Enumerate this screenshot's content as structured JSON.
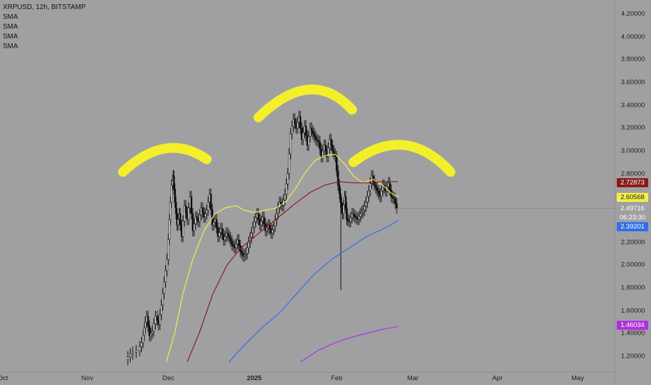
{
  "legend": {
    "symbol": "XRPUSD, 12h, BITSTAMP",
    "indicators": [
      "SMA",
      "SMA",
      "SMA",
      "SMA"
    ]
  },
  "price_axis": {
    "ticks": [
      "4.20000",
      "4.00000",
      "3.80000",
      "3.60000",
      "3.40000",
      "3.20000",
      "3.00000",
      "2.80000",
      "2.20000",
      "2.00000",
      "1.80000",
      "1.60000",
      "1.40000",
      "1.20000"
    ]
  },
  "time_axis": {
    "ticks": [
      {
        "label": "Oct",
        "bold": false
      },
      {
        "label": "Nov",
        "bold": false
      },
      {
        "label": "Dec",
        "bold": false
      },
      {
        "label": "2025",
        "bold": true
      },
      {
        "label": "Feb",
        "bold": false
      },
      {
        "label": "Mar",
        "bold": false
      },
      {
        "label": "Apr",
        "bold": false
      },
      {
        "label": "May",
        "bold": false
      }
    ]
  },
  "badges": {
    "sma_red": {
      "value": "2.72873",
      "color": "#8b1a1a"
    },
    "sma_yellow": {
      "value": "2.60568",
      "color": "#f2ee4a"
    },
    "last_price": {
      "value": "2.49716",
      "color": "#a0a0a3"
    },
    "countdown": {
      "value": "06:23:30",
      "color": "#a0a0a3"
    },
    "sma_blue": {
      "value": "2.39201",
      "color": "#2f6fe8"
    },
    "sma_purple": {
      "value": "1.46034",
      "color": "#b030e0"
    }
  },
  "chart_data": {
    "type": "line",
    "title": "XRPUSD, 12h, BITSTAMP",
    "ylim": [
      1.15,
      4.25
    ],
    "x": [
      "Oct",
      "Nov",
      "Dec",
      "2025",
      "Feb",
      "Mar",
      "Apr",
      "May"
    ],
    "series": [
      {
        "name": "SMA",
        "color": "#8b1a1a",
        "last": 2.72873
      },
      {
        "name": "SMA",
        "color": "#f2ee4a",
        "last": 2.60568
      },
      {
        "name": "SMA",
        "color": "#2f6fe8",
        "last": 2.39201
      },
      {
        "name": "SMA",
        "color": "#b030e0",
        "last": 1.46034
      }
    ],
    "last_price": 2.49716,
    "annotations": [
      "head-and-shoulders arcs (yellow)"
    ]
  }
}
